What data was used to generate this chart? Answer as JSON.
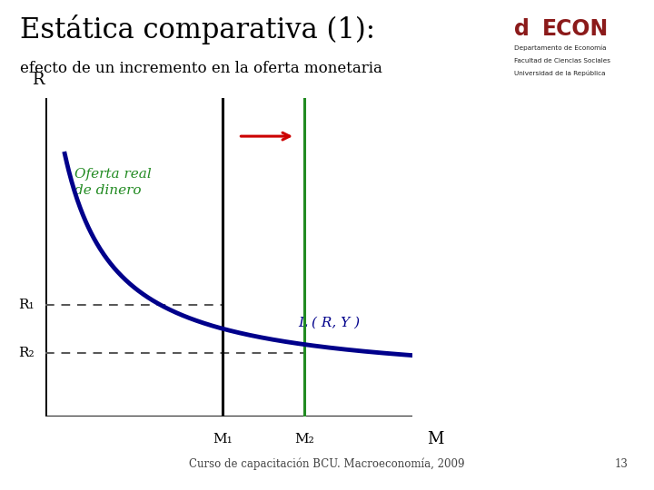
{
  "title_main": "Estática comparativa (1):",
  "title_sub": "efecto de un incremento en la oferta monetaria",
  "title_fontsize": 22,
  "subtitle_fontsize": 12,
  "background_color": "#ffffff",
  "R1": 0.35,
  "R2": 0.2,
  "M1": 2.8,
  "M2": 4.1,
  "M_max": 5.8,
  "ylim_max": 1.0,
  "curve_color": "#00008B",
  "vline1_color": "#000000",
  "vline2_color": "#228B22",
  "hline_color": "#555555",
  "arrow_color": "#cc0000",
  "label_LRY": "L ( R, Y )",
  "label_oferta": "Oferta real\nde dinero",
  "oferta_color": "#228B22",
  "footer_text": "Curso de capacitación BCU. Macroeconomía, 2009",
  "footer_page": "13",
  "curve_a": 0.58,
  "curve_shift": 0.5,
  "curve_b": 0.1
}
